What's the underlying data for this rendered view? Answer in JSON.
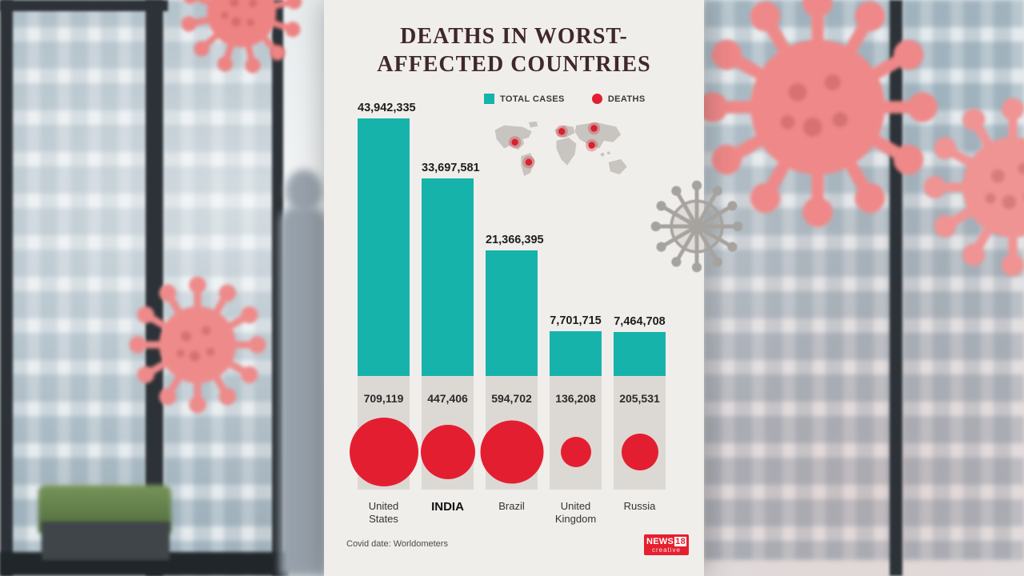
{
  "header": {
    "title_line1": "DEATHS IN WORST-",
    "title_line2": "AFFECTED COUNTRIES"
  },
  "legend": {
    "total_cases": "TOTAL CASES",
    "deaths": "DEATHS"
  },
  "footer": {
    "source": "Covid date: Worldometers"
  },
  "logo": {
    "news": "NEWS",
    "eighteen": "18",
    "tagline": "creative"
  },
  "colors": {
    "teal": "#16b3ab",
    "red": "#e41e31",
    "panel_bg": "#f0eeeb",
    "gray_box": "#dcd9d5",
    "title": "#40282a"
  },
  "chart_data": {
    "type": "bar",
    "title": "DEATHS IN WORST-AFFECTED COUNTRIES",
    "categories": [
      "United States",
      "INDIA",
      "Brazil",
      "United Kingdom",
      "Russia"
    ],
    "highlight_category": "INDIA",
    "series": [
      {
        "name": "TOTAL CASES",
        "color": "#16b3ab",
        "values": [
          43942335,
          33697581,
          21366395,
          7701715,
          7464708
        ],
        "labels": [
          "43,942,335",
          "33,697,581",
          "21,366,395",
          "7,701,715",
          "7,464,708"
        ]
      },
      {
        "name": "DEATHS",
        "color": "#e41e31",
        "values": [
          709119,
          447406,
          594702,
          136208,
          205531
        ],
        "labels": [
          "709,119",
          "447,406",
          "594,702",
          "136,208",
          "205,531"
        ]
      }
    ],
    "encoding": "bar height = total cases; circle area = deaths",
    "source": "Covid date: Worldometers",
    "legend_position": "top"
  }
}
